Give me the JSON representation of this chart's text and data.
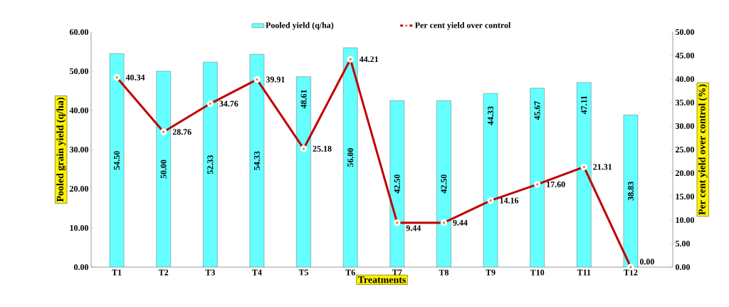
{
  "chart_data": {
    "type": "bar",
    "categories": [
      "T1",
      "T2",
      "T3",
      "T4",
      "T5",
      "T6",
      "T7",
      "T8",
      "T9",
      "T10",
      "T11",
      "T12"
    ],
    "series": [
      {
        "name": "Pooled yield (q/ha)",
        "color": "#66ffff",
        "values": [
          54.5,
          50.0,
          52.33,
          54.33,
          48.61,
          56.0,
          42.5,
          42.5,
          44.33,
          45.67,
          47.11,
          38.83
        ],
        "value_labels": [
          "54.50",
          "50.00",
          "52.33",
          "54.33",
          "48.61",
          "56.00",
          "42.50",
          "42.50",
          "44.33",
          "45.67",
          "47.11",
          "38.83"
        ]
      },
      {
        "name": "Per cent yield over control",
        "type": "line",
        "axis": "y2",
        "color": "#c00000",
        "values": [
          40.34,
          28.76,
          34.76,
          39.91,
          25.18,
          44.21,
          9.44,
          9.44,
          14.16,
          17.6,
          21.31,
          0.0
        ],
        "value_labels": [
          "40.34",
          "28.76",
          "34.76",
          "39.91",
          "25.18",
          "44.21",
          "9.44",
          "9.44",
          "14.16",
          "17.60",
          "21.31",
          "0.00"
        ]
      }
    ],
    "xlabel": "Treatments",
    "ylabel": "Pooled grain yield (q/ha)",
    "y2label": "Per cent yield  over control (%)",
    "ylim": [
      0,
      60
    ],
    "yticks": [
      {
        "value": 0,
        "label": "0.00"
      },
      {
        "value": 10,
        "label": "10.00"
      },
      {
        "value": 20,
        "label": "20.00"
      },
      {
        "value": 30,
        "label": "30.00"
      },
      {
        "value": 40,
        "label": "40.00"
      },
      {
        "value": 50,
        "label": "50.00"
      },
      {
        "value": 60,
        "label": "60.00"
      }
    ],
    "y2lim": [
      0,
      50
    ],
    "y2ticks": [
      {
        "value": 0,
        "label": "0.00"
      },
      {
        "value": 5,
        "label": "5.00"
      },
      {
        "value": 10,
        "label": "10.00"
      },
      {
        "value": 15,
        "label": "15.00"
      },
      {
        "value": 20,
        "label": "20.00"
      },
      {
        "value": 25,
        "label": "25.00"
      },
      {
        "value": 30,
        "label": "30.00"
      },
      {
        "value": 35,
        "label": "35.00"
      },
      {
        "value": 40,
        "label": "40.00"
      },
      {
        "value": 45,
        "label": "45.00"
      },
      {
        "value": 50,
        "label": "50.00"
      }
    ],
    "legend": "top",
    "marker": "circle",
    "line_style": "solid",
    "grid": false
  }
}
